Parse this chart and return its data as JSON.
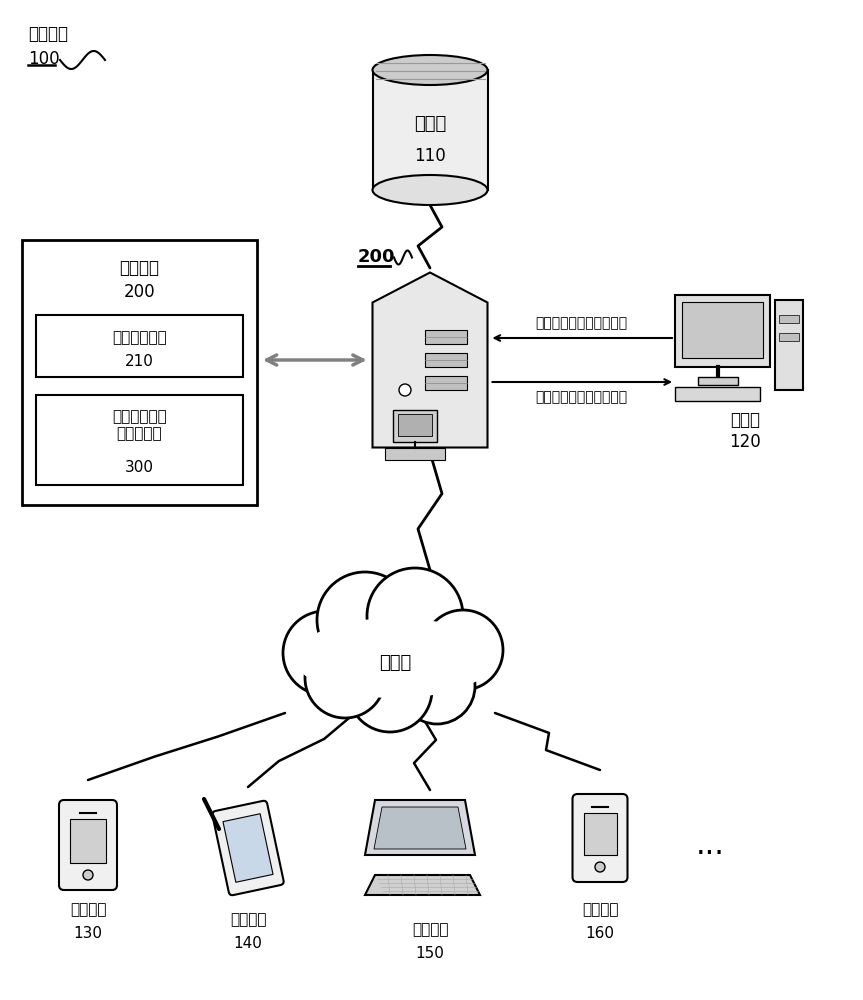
{
  "bg_color": "#ffffff",
  "title_label": "网络系统",
  "title_ref": "100",
  "database_label": "数据库",
  "database_ref": "110",
  "server_ref": "200",
  "user_label": "用户端",
  "user_ref": "120",
  "calc_box_label": "计算设备",
  "calc_box_ref": "200",
  "data_proc_label": "数据处理装置",
  "data_proc_ref": "210",
  "stat_device_label": "统计移动设备\n数量的装置",
  "stat_device_ref": "300",
  "internet_label": "互联网",
  "arrow_req_label": "统计移动设备数量的请求",
  "arrow_res_label": "移动设备数量的统计结果",
  "mobile_labels": [
    "移动设备",
    "移动设备",
    "移动设备",
    "移动设备"
  ],
  "mobile_refs": [
    "130",
    "140",
    "150",
    "160"
  ],
  "text_color": "#000000",
  "line_color": "#000000",
  "box_fill": "#ffffff",
  "box_edge": "#000000",
  "gray_fill": "#d8d8d8",
  "mid_gray": "#bbbbbb",
  "dark_gray": "#888888"
}
